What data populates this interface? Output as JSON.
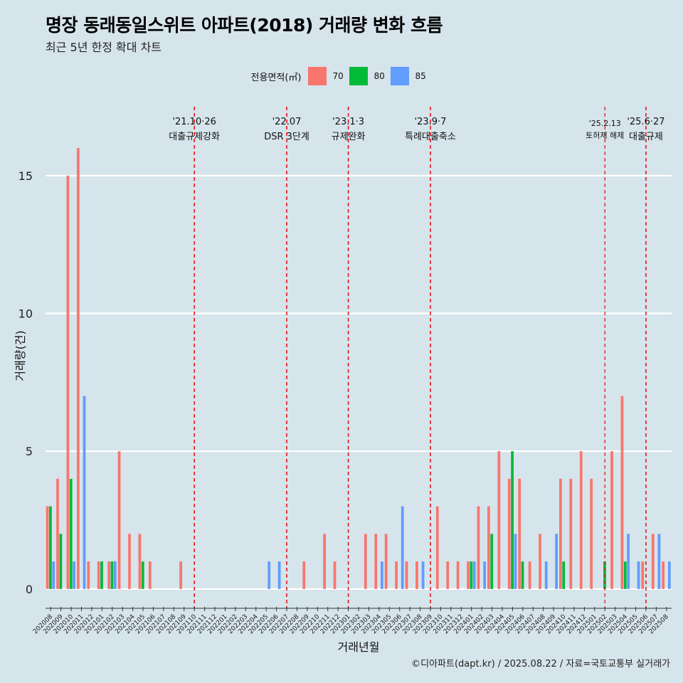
{
  "title": "명장 동래동일스위트 아파트(2018) 거래량 변화 흐름",
  "subtitle": "최근 5년 한정 확대 차트",
  "credit": "©디아파트(dapt.kr) / 2025.08.22 / 자료=국토교통부 실거래가",
  "legend": {
    "title": "전용면적(㎡)",
    "items": [
      {
        "label": "70",
        "color": "#f8766d"
      },
      {
        "label": "80",
        "color": "#00ba38"
      },
      {
        "label": "85",
        "color": "#619cff"
      }
    ]
  },
  "chart_data": {
    "type": "bar",
    "xlabel": "거래년월",
    "ylabel": "거래량(건)",
    "ylim": [
      -0.7,
      17.5
    ],
    "yticks": [
      0,
      5,
      10,
      15
    ],
    "grid": true,
    "legend_position": "top",
    "categories": [
      "202008",
      "202009",
      "202010",
      "202011",
      "202012",
      "202101",
      "202102",
      "202103",
      "202104",
      "202105",
      "202106",
      "202107",
      "202108",
      "202109",
      "202110",
      "202111",
      "202112",
      "202201",
      "202202",
      "202203",
      "202204",
      "202205",
      "202206",
      "202207",
      "202208",
      "202209",
      "202210",
      "202211",
      "202212",
      "202301",
      "202302",
      "202303",
      "202304",
      "202305",
      "202306",
      "202307",
      "202308",
      "202309",
      "202310",
      "202311",
      "202312",
      "202401",
      "202402",
      "202403",
      "202404",
      "202405",
      "202406",
      "202407",
      "202408",
      "202409",
      "202410",
      "202411",
      "202412",
      "202501",
      "202502",
      "202503",
      "202504",
      "202505",
      "202506",
      "202507",
      "202508"
    ],
    "series": [
      {
        "name": "70",
        "color": "#f8766d",
        "values": [
          3,
          4,
          15,
          16,
          1,
          1,
          1,
          5,
          2,
          2,
          1,
          0,
          0,
          1,
          0,
          0,
          0,
          0,
          0,
          0,
          0,
          0,
          0,
          0,
          0,
          1,
          0,
          2,
          1,
          0,
          0,
          2,
          2,
          2,
          1,
          1,
          1,
          0,
          3,
          1,
          1,
          1,
          3,
          3,
          5,
          4,
          4,
          1,
          2,
          0,
          4,
          4,
          5,
          4,
          0,
          5,
          7,
          0,
          1,
          2,
          1
        ]
      },
      {
        "name": "80",
        "color": "#00ba38",
        "values": [
          3,
          2,
          4,
          0,
          0,
          1,
          1,
          0,
          0,
          1,
          0,
          0,
          0,
          0,
          0,
          0,
          0,
          0,
          0,
          0,
          0,
          0,
          0,
          0,
          0,
          0,
          0,
          0,
          0,
          0,
          0,
          0,
          0,
          0,
          0,
          0,
          0,
          0,
          0,
          0,
          0,
          1,
          0,
          2,
          0,
          5,
          1,
          0,
          0,
          0,
          1,
          0,
          0,
          0,
          1,
          0,
          1,
          0,
          0,
          0,
          0
        ]
      },
      {
        "name": "85",
        "color": "#619cff",
        "values": [
          1,
          0,
          1,
          7,
          0,
          0,
          1,
          0,
          0,
          0,
          0,
          0,
          0,
          0,
          0,
          0,
          0,
          0,
          0,
          0,
          0,
          1,
          1,
          0,
          0,
          0,
          0,
          0,
          0,
          0,
          0,
          0,
          1,
          0,
          3,
          0,
          1,
          0,
          0,
          0,
          0,
          1,
          1,
          0,
          0,
          2,
          0,
          0,
          1,
          2,
          0,
          0,
          0,
          0,
          0,
          0,
          2,
          1,
          0,
          2,
          1
        ]
      }
    ],
    "events": [
      {
        "date_label": "'21.10·26",
        "text": "대출규제강화",
        "category": "202110",
        "offset": 0
      },
      {
        "date_label": "'22.07",
        "text": "DSR 3단계",
        "category": "202207",
        "offset": 0
      },
      {
        "date_label": "'23.1·3",
        "text": "규제완화",
        "category": "202301",
        "offset": 0
      },
      {
        "date_label": "'23.9·7",
        "text": "특례대출축소",
        "category": "202309",
        "offset": 0
      },
      {
        "date_label": "'25.2.13",
        "text": "토허제 해제",
        "category": "202502",
        "offset": 0,
        "small": true
      },
      {
        "date_label": "'25.6·27",
        "text": "대출규제",
        "category": "202506",
        "offset": 0
      }
    ]
  }
}
